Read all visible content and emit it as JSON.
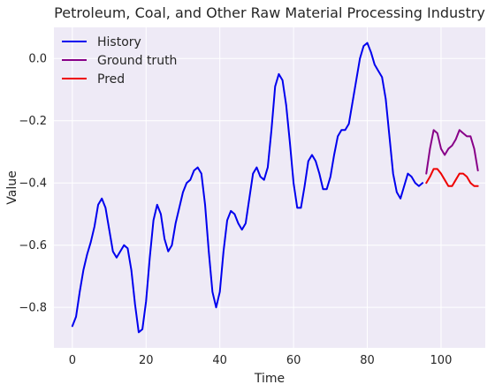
{
  "chart_data": {
    "type": "line",
    "title": "Petroleum, Coal, and Other Raw Material Processing Industry",
    "xlabel": "Time",
    "ylabel": "Value",
    "xlim": [
      -5,
      112
    ],
    "ylim": [
      -0.93,
      0.1
    ],
    "x_ticks": [
      0,
      20,
      40,
      60,
      80,
      100
    ],
    "y_ticks": [
      0.0,
      -0.2,
      -0.4,
      -0.6,
      -0.8
    ],
    "y_tick_labels": [
      "0.0",
      "−0.2",
      "−0.4",
      "−0.6",
      "−0.8"
    ],
    "grid": true,
    "legend_position": "upper-left",
    "plot_background": "#eeeaf6",
    "series": [
      {
        "name": "History",
        "color": "#0000ee",
        "x": [
          0,
          1,
          2,
          3,
          4,
          5,
          6,
          7,
          8,
          9,
          10,
          11,
          12,
          13,
          14,
          15,
          16,
          17,
          18,
          19,
          20,
          21,
          22,
          23,
          24,
          25,
          26,
          27,
          28,
          29,
          30,
          31,
          32,
          33,
          34,
          35,
          36,
          37,
          38,
          39,
          40,
          41,
          42,
          43,
          44,
          45,
          46,
          47,
          48,
          49,
          50,
          51,
          52,
          53,
          54,
          55,
          56,
          57,
          58,
          59,
          60,
          61,
          62,
          63,
          64,
          65,
          66,
          67,
          68,
          69,
          70,
          71,
          72,
          73,
          74,
          75,
          76,
          77,
          78,
          79,
          80,
          81,
          82,
          83,
          84,
          85,
          86,
          87,
          88,
          89,
          90,
          91,
          92,
          93,
          94,
          95
        ],
        "values": [
          -0.86,
          -0.83,
          -0.75,
          -0.68,
          -0.63,
          -0.59,
          -0.54,
          -0.47,
          -0.45,
          -0.48,
          -0.55,
          -0.62,
          -0.64,
          -0.62,
          -0.6,
          -0.61,
          -0.68,
          -0.79,
          -0.88,
          -0.87,
          -0.78,
          -0.64,
          -0.52,
          -0.47,
          -0.5,
          -0.58,
          -0.62,
          -0.6,
          -0.53,
          -0.48,
          -0.43,
          -0.4,
          -0.39,
          -0.36,
          -0.35,
          -0.37,
          -0.47,
          -0.62,
          -0.75,
          -0.8,
          -0.75,
          -0.62,
          -0.52,
          -0.49,
          -0.5,
          -0.53,
          -0.55,
          -0.53,
          -0.45,
          -0.37,
          -0.35,
          -0.38,
          -0.39,
          -0.35,
          -0.23,
          -0.09,
          -0.05,
          -0.07,
          -0.15,
          -0.27,
          -0.4,
          -0.48,
          -0.48,
          -0.41,
          -0.33,
          -0.31,
          -0.33,
          -0.37,
          -0.42,
          -0.42,
          -0.38,
          -0.31,
          -0.25,
          -0.23,
          -0.23,
          -0.21,
          -0.14,
          -0.07,
          0.0,
          0.04,
          0.05,
          0.02,
          -0.02,
          -0.04,
          -0.06,
          -0.13,
          -0.25,
          -0.37,
          -0.43,
          -0.45,
          -0.41,
          -0.37,
          -0.38,
          -0.4,
          -0.41,
          -0.4
        ]
      },
      {
        "name": "Ground truth",
        "color": "#880088",
        "x": [
          96,
          97,
          98,
          99,
          100,
          101,
          102,
          103,
          104,
          105,
          106,
          107,
          108,
          109,
          110
        ],
        "values": [
          -0.37,
          -0.29,
          -0.23,
          -0.24,
          -0.29,
          -0.31,
          -0.29,
          -0.28,
          -0.26,
          -0.23,
          -0.24,
          -0.25,
          -0.25,
          -0.29,
          -0.36
        ]
      },
      {
        "name": "Pred",
        "color": "#ee0000",
        "x": [
          96,
          97,
          98,
          99,
          100,
          101,
          102,
          103,
          104,
          105,
          106,
          107,
          108,
          109,
          110
        ],
        "values": [
          -0.4,
          -0.38,
          -0.355,
          -0.355,
          -0.37,
          -0.39,
          -0.41,
          -0.41,
          -0.39,
          -0.37,
          -0.37,
          -0.38,
          -0.4,
          -0.41,
          -0.41
        ]
      }
    ]
  }
}
